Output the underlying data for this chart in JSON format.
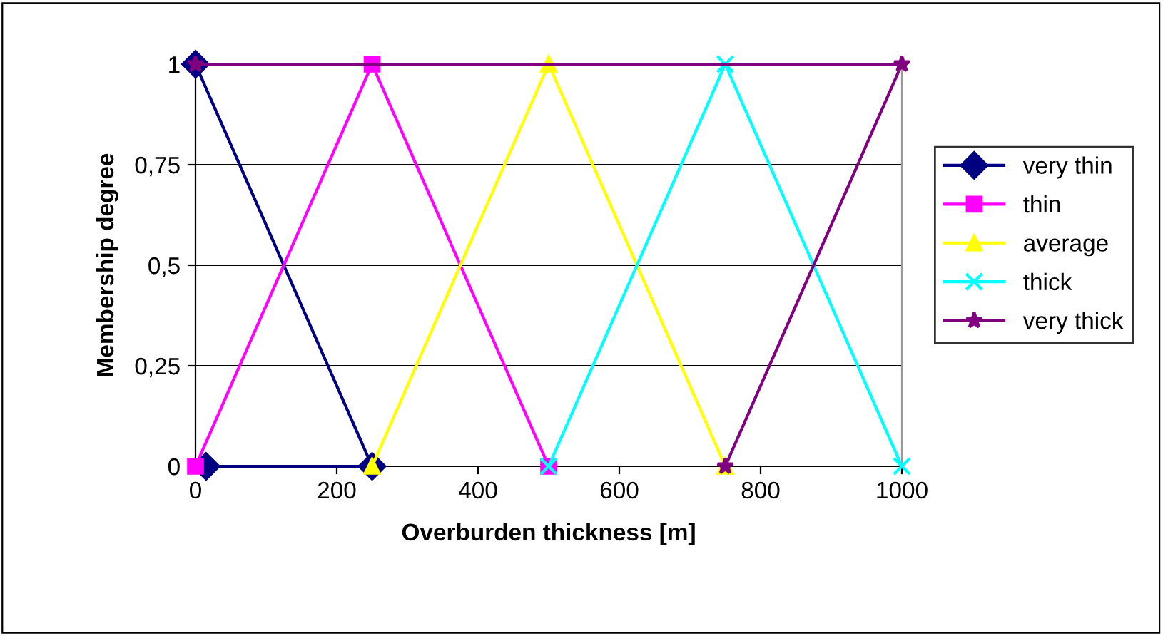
{
  "chart_data": {
    "type": "line",
    "xlabel": "Overburden thickness [m]",
    "ylabel": "Membership degree",
    "xlim": [
      0,
      1000
    ],
    "xticks": [
      0,
      200,
      400,
      600,
      800,
      1000
    ],
    "ylim": [
      0,
      1
    ],
    "yticks": [
      0,
      {
        "value": 0.25,
        "label": "0,25"
      },
      {
        "value": 0.5,
        "label": "0,5"
      },
      {
        "value": 0.75,
        "label": "0,75"
      },
      1
    ],
    "grid": "y",
    "legend": "right",
    "line_style": "solid",
    "series": [
      {
        "name": "very thin",
        "color": "#000080",
        "marker": "diamond",
        "x": [
          0,
          250,
          15
        ],
        "values": [
          1,
          0,
          0
        ]
      },
      {
        "name": "thin",
        "color": "#ff00ff",
        "marker": "square",
        "x": [
          0,
          250,
          500
        ],
        "values": [
          0,
          1,
          0
        ]
      },
      {
        "name": "average",
        "color": "#ffff00",
        "marker": "triangle",
        "x": [
          250,
          500,
          750
        ],
        "values": [
          0,
          1,
          0
        ]
      },
      {
        "name": "thick",
        "color": "#00ffff",
        "marker": "cross",
        "x": [
          500,
          750,
          1000
        ],
        "values": [
          0,
          1,
          0
        ]
      },
      {
        "name": "very thick",
        "color": "#800080",
        "marker": "star",
        "x": [
          0,
          1000,
          750
        ],
        "values": [
          1,
          1,
          0
        ]
      }
    ]
  }
}
